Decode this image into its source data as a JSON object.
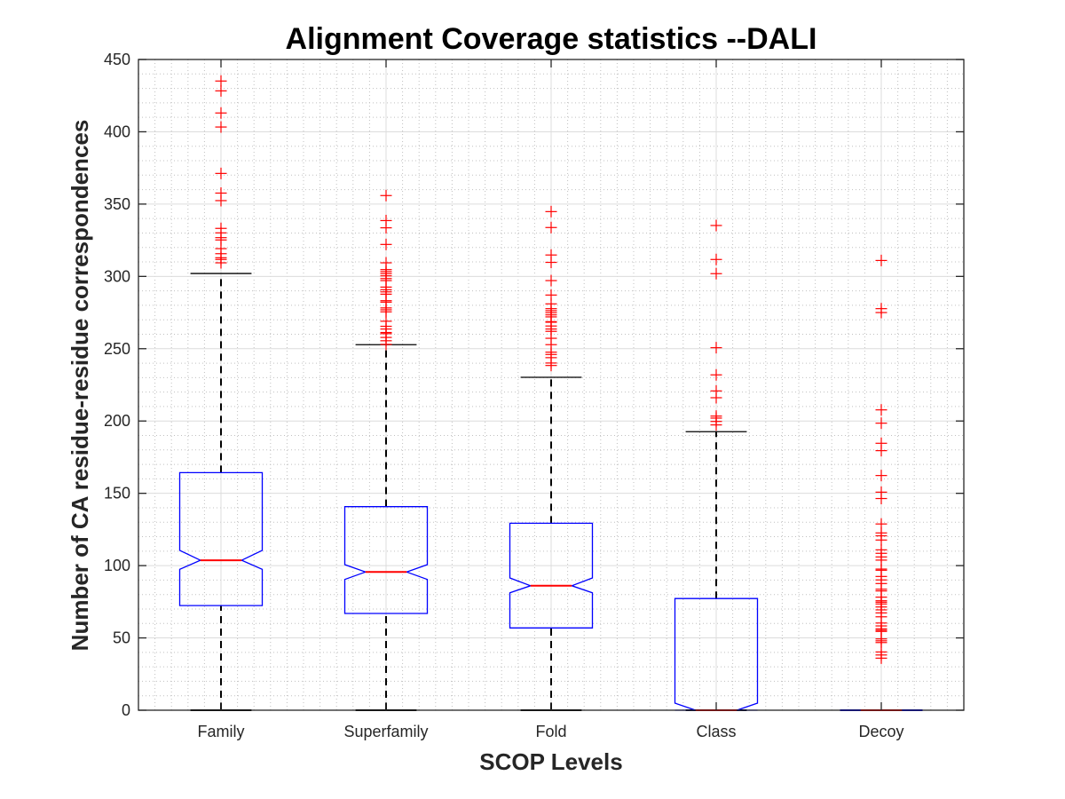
{
  "chart_data": {
    "type": "boxplot",
    "title": "Alignment Coverage statistics --DALI",
    "xlabel": "SCOP Levels",
    "ylabel": "Number of CA residue-residue correspondences",
    "ylim": [
      0,
      450
    ],
    "yticks": [
      0,
      50,
      100,
      150,
      200,
      250,
      300,
      350,
      400,
      450
    ],
    "ytick_labels": [
      "0",
      "50",
      "100",
      "150",
      "200",
      "250",
      "300",
      "350",
      "400",
      "450"
    ],
    "grid": "major and minor",
    "notched": true,
    "colors": {
      "box": "#0000ff",
      "median": "#ff0000",
      "whisker": "#000000",
      "outlier": "#ff0000",
      "grid_major": "#dcdcdc",
      "grid_minor": "#c0c0c0",
      "axis": "#262626"
    },
    "categories": [
      "Family",
      "Superfamily",
      "Fold",
      "Class",
      "Decoy"
    ],
    "boxes": [
      {
        "name": "Family",
        "whisker_low": 0,
        "q1": 72.4,
        "notch_low": 97.4,
        "median": 103.7,
        "notch_high": 110.5,
        "q3": 164.3,
        "whisker_high": 302,
        "outliers": [
          435.1,
          428.3,
          413.0,
          403.3,
          371.2,
          357.6,
          352.4,
          333.2,
          330.1,
          326.8,
          325.2,
          319.2,
          315.7,
          312.9,
          311.7,
          309.4
        ]
      },
      {
        "name": "Superfamily",
        "whisker_low": 0,
        "q1": 66.9,
        "notch_low": 90.4,
        "median": 95.6,
        "notch_high": 100.7,
        "q3": 140.8,
        "whisker_high": 252.8,
        "outliers": [
          355.9,
          338.6,
          333.6,
          322.1,
          309.4,
          304.7,
          303.3,
          301.9,
          300.4,
          298.5,
          297.1,
          292.6,
          290.8,
          289.3,
          287.7,
          283.2,
          282.2,
          278.2,
          276.9,
          275.5,
          269.0,
          265.5,
          263.6,
          261.2,
          260.4,
          257.8,
          255.5,
          253.0
        ]
      },
      {
        "name": "Fold",
        "whisker_low": 0,
        "q1": 56.9,
        "notch_low": 81.2,
        "median": 86.1,
        "notch_high": 91.5,
        "q3": 129.3,
        "whisker_high": 230.2,
        "outliers": [
          344.8,
          333.8,
          314.8,
          309.7,
          297.1,
          287.1,
          281.0,
          277.7,
          276.3,
          274.9,
          273.4,
          272.0,
          268.7,
          268.3,
          265.7,
          263.6,
          262.0,
          257.2,
          252.8,
          247.6,
          246.0,
          243.8,
          240.1,
          238.4
        ]
      },
      {
        "name": "Class",
        "whisker_low": 0,
        "q1": 0,
        "notch_low": 0,
        "median": 0,
        "notch_high": 4.9,
        "q3": 77.2,
        "whisker_high": 192.6,
        "outliers": [
          335.2,
          311.7,
          301.9,
          250.7,
          231.9,
          220.8,
          216.1,
          203.4,
          202.0,
          199.7,
          197.3
        ]
      },
      {
        "name": "Decoy",
        "whisker_low": 0,
        "q1": 0,
        "notch_low": 0,
        "median": 0,
        "notch_high": 0,
        "q3": 0,
        "whisker_high": 0,
        "outliers": [
          311.0,
          277.7,
          275.0,
          207.7,
          198.5,
          184.6,
          179.5,
          162.3,
          150.8,
          146.4,
          128.8,
          122.6,
          120.6,
          117.7,
          110.9,
          108.5,
          106.0,
          103.8,
          97.6,
          96.8,
          92.5,
          90.1,
          87.6,
          83.7,
          82.5,
          78.2,
          75.7,
          74.7,
          73.5,
          71.4,
          69.4,
          67.3,
          64.6,
          60.3,
          58.3,
          56.3,
          55.3,
          54.5,
          49.3,
          48.0,
          46.8,
          40.3,
          38.2,
          36.0
        ]
      }
    ]
  }
}
